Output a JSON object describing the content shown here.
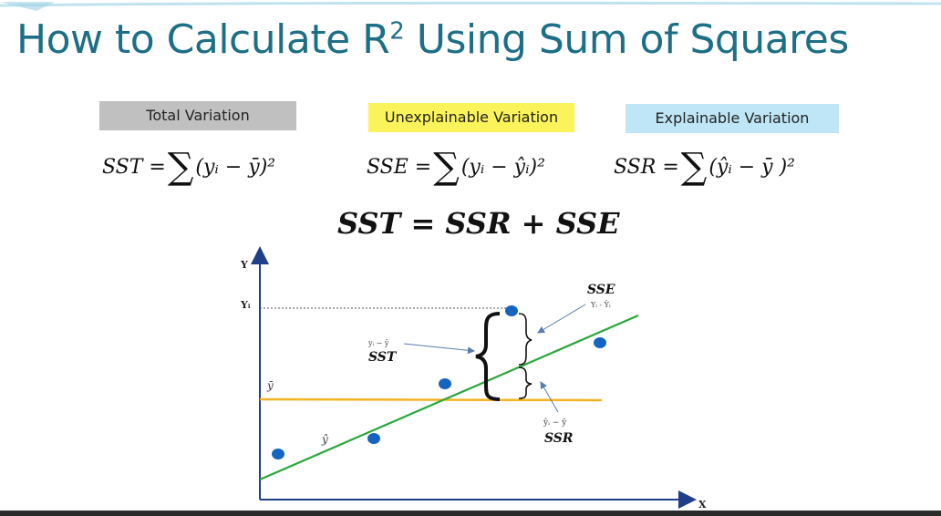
{
  "slide": {
    "title": "How to Calculate R",
    "title_sup": "2",
    "title_rest": " Using Sum of Squares"
  },
  "labels": {
    "total": "Total Variation",
    "unexplainable": "Unexplainable Variation",
    "explainable": "Explainable Variation"
  },
  "formulas": {
    "sst_lhs": "SST =",
    "sst_rhs": "(yᵢ − ȳ)²",
    "sse_lhs": "SSE =",
    "sse_rhs": "(yᵢ − ŷᵢ)²",
    "ssr_lhs": "SSR =",
    "ssr_rhs": "(ŷᵢ − ȳ )²",
    "sum_symbol": "∑"
  },
  "equation": "SST = SSR + SSE",
  "diagram": {
    "y_axis_label": "Y",
    "x_axis_label": "X",
    "yi_label": "Yᵢ",
    "ybar_label": "ȳ",
    "yhat_label": "ŷ",
    "sse_label": "SSE",
    "sse_sub": "Yᵢ - Ŷᵢ",
    "sst_label": "SST",
    "sst_sub": "yᵢ − ȳ",
    "ssr_label": "SSR",
    "ssr_sub": "ŷᵢ − ȳ",
    "colors": {
      "points": "#1565c0",
      "regression_line": "#2aa63a",
      "mean_line": "#f2b320",
      "axes": "#1f3f8a",
      "title": "#1d6f86"
    }
  }
}
